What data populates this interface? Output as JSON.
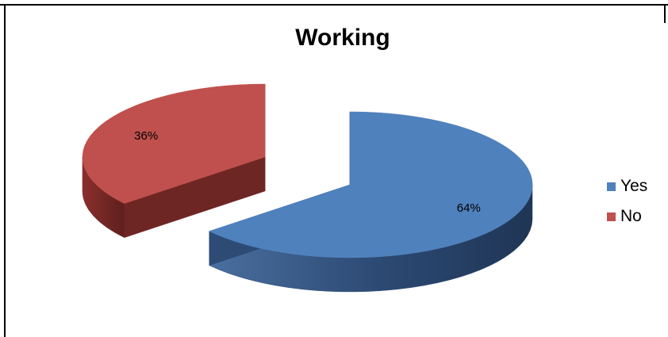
{
  "chart_data": {
    "type": "pie",
    "title": "Working",
    "categories": [
      "Yes",
      "No"
    ],
    "values": [
      64,
      36
    ],
    "data_labels": [
      "64%",
      "36%"
    ],
    "colors": [
      "#4f81bd",
      "#c0504d"
    ],
    "legend_position": "right",
    "style": "3d-exploded"
  }
}
